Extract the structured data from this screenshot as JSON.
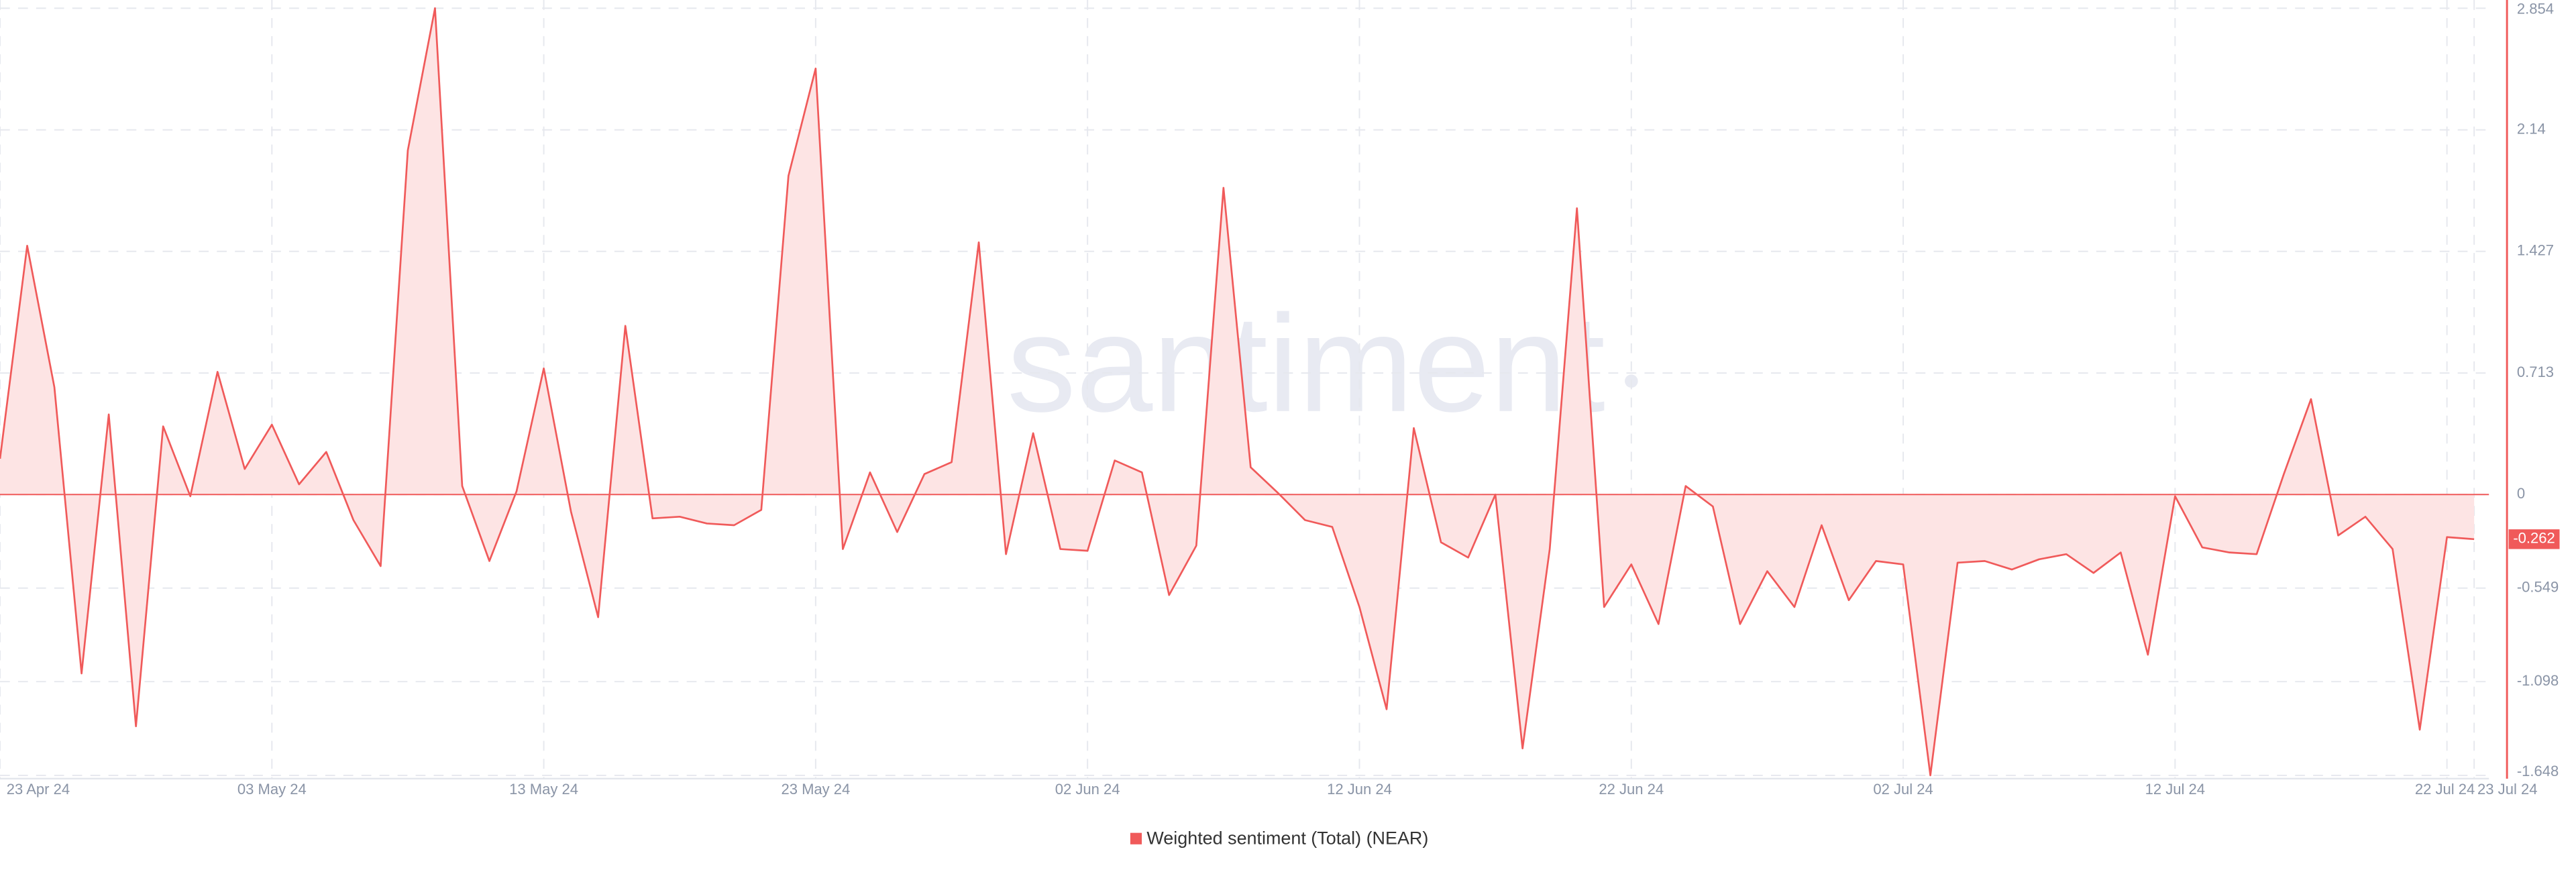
{
  "chart_data": {
    "type": "area",
    "watermark": "santiment",
    "categories": [
      "23 Apr 24",
      null,
      null,
      null,
      null,
      null,
      null,
      null,
      null,
      null,
      "03 May 24",
      null,
      null,
      null,
      null,
      null,
      null,
      null,
      null,
      null,
      "13 May 24",
      null,
      null,
      null,
      null,
      null,
      null,
      null,
      null,
      null,
      "23 May 24",
      null,
      null,
      null,
      null,
      null,
      null,
      null,
      null,
      null,
      "02 Jun 24",
      null,
      null,
      null,
      null,
      null,
      null,
      null,
      null,
      null,
      "12 Jun 24",
      null,
      null,
      null,
      null,
      null,
      null,
      null,
      null,
      null,
      "22 Jun 24",
      null,
      null,
      null,
      null,
      null,
      null,
      null,
      null,
      null,
      "02 Jul 24",
      null,
      null,
      null,
      null,
      null,
      null,
      null,
      null,
      null,
      "12 Jul 24",
      null,
      null,
      null,
      null,
      null,
      null,
      null,
      null,
      null,
      "22 Jul 24",
      "23 Jul 24"
    ],
    "series": [
      {
        "name": "Weighted sentiment (Total) (NEAR)",
        "color": "#f05a5a",
        "fill": "#fde4e4",
        "values": [
          0.21,
          1.46,
          0.63,
          -1.05,
          0.47,
          -1.36,
          0.4,
          -0.01,
          0.72,
          0.15,
          0.41,
          0.06,
          0.25,
          -0.15,
          -0.42,
          2.02,
          2.854,
          0.05,
          -0.39,
          0.02,
          0.74,
          -0.1,
          -0.72,
          0.99,
          -0.14,
          -0.13,
          -0.17,
          -0.18,
          -0.09,
          1.87,
          2.5,
          -0.32,
          0.13,
          -0.22,
          0.12,
          0.19,
          1.48,
          -0.35,
          0.36,
          -0.32,
          -0.33,
          0.2,
          0.13,
          -0.59,
          -0.3,
          1.8,
          0.16,
          0.01,
          -0.15,
          -0.19,
          -0.66,
          -1.26,
          0.39,
          -0.28,
          -0.37,
          0,
          -1.49,
          -0.32,
          1.68,
          -0.66,
          -0.41,
          -0.76,
          0.05,
          -0.07,
          -0.76,
          -0.45,
          -0.66,
          -0.18,
          -0.62,
          -0.39,
          -0.41,
          -1.648,
          -0.4,
          -0.39,
          -0.44,
          -0.38,
          -0.35,
          -0.46,
          -0.34,
          -0.94,
          -0.01,
          -0.31,
          -0.34,
          -0.35,
          0.12,
          0.56,
          -0.24,
          -0.13,
          -0.32,
          -1.38,
          -0.25,
          -0.262
        ]
      }
    ],
    "ylim": [
      -1.648,
      2.854
    ],
    "yticks": [
      2.854,
      2.14,
      1.427,
      0.713,
      0,
      -0.549,
      -1.098,
      -1.648
    ],
    "grid": true
  }
}
